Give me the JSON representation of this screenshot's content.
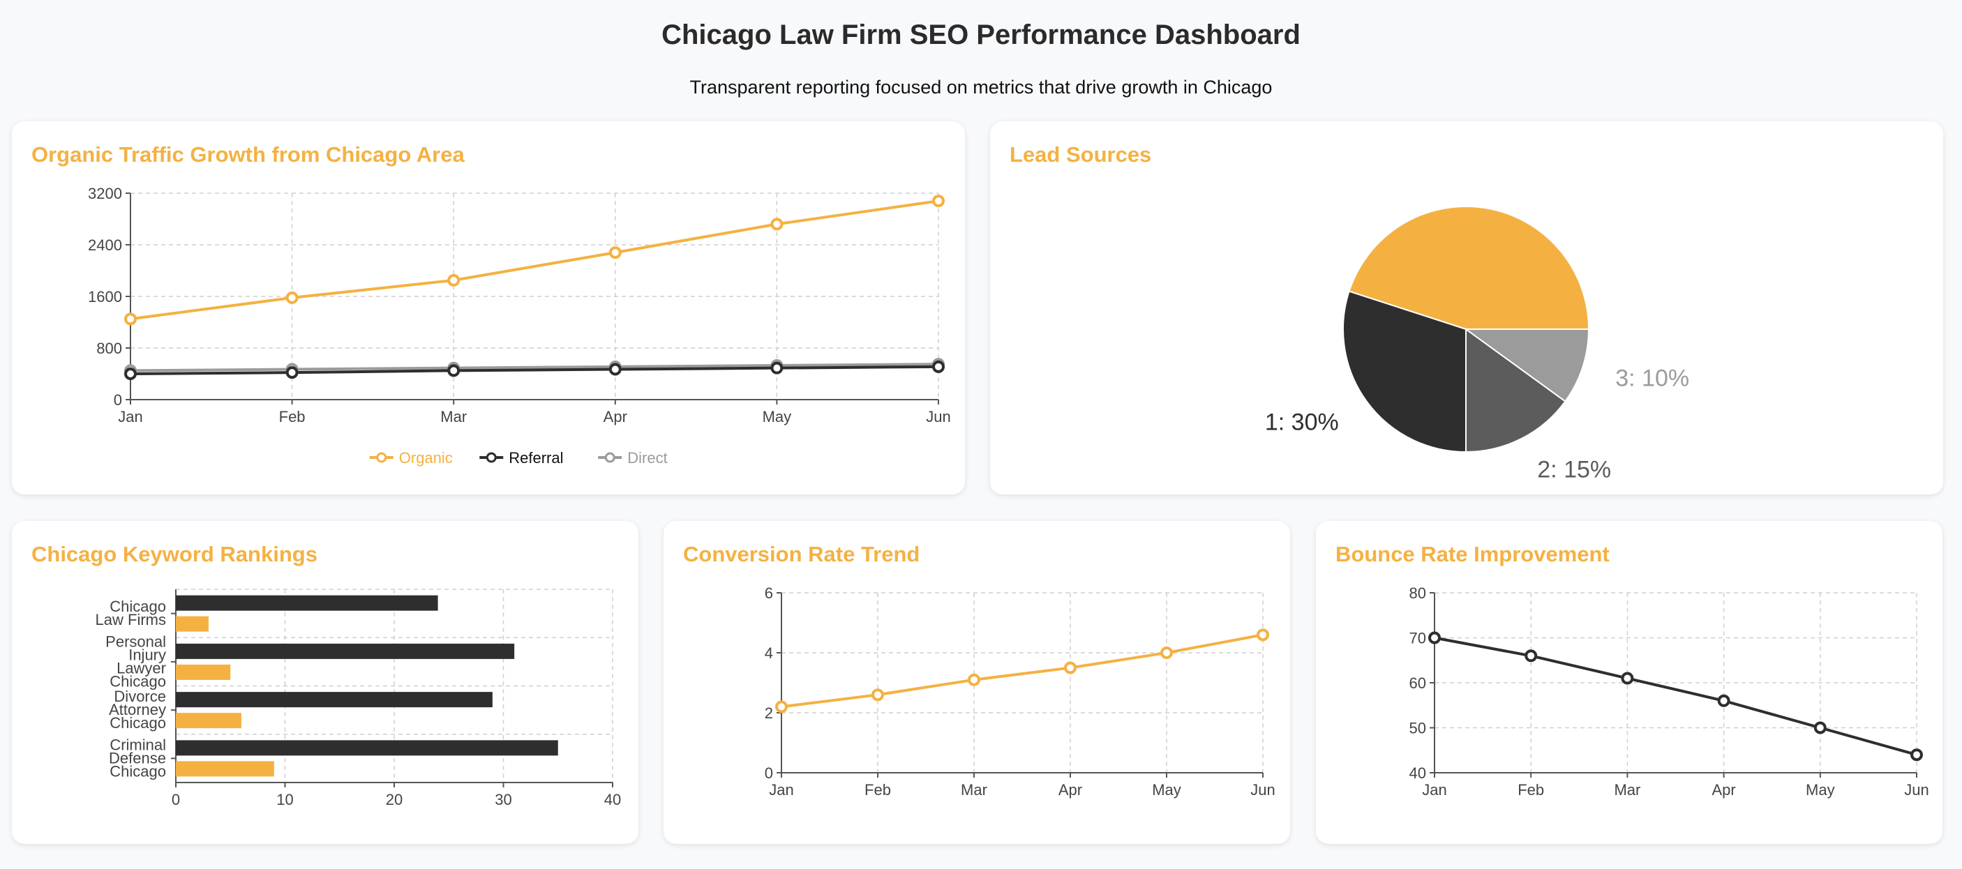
{
  "page": {
    "title": "Chicago Law Firm SEO Performance Dashboard",
    "subtitle": "Transparent reporting focused on metrics that drive growth in Chicago"
  },
  "colors": {
    "accent": "#f4b142",
    "dark": "#2e2e2e",
    "mid": "#5c5c5c",
    "light": "#9b9b9b"
  },
  "chart_data": [
    {
      "id": "traffic",
      "type": "line",
      "title": "Organic Traffic Growth from Chicago Area",
      "categories": [
        "Jan",
        "Feb",
        "Mar",
        "Apr",
        "May",
        "Jun"
      ],
      "series": [
        {
          "name": "Organic",
          "color": "#f4b142",
          "values": [
            1250,
            1580,
            1850,
            2280,
            2720,
            3080
          ]
        },
        {
          "name": "Referral",
          "color": "#2e2e2e",
          "values": [
            400,
            420,
            450,
            470,
            490,
            510
          ]
        },
        {
          "name": "Direct",
          "color": "#9b9b9b",
          "values": [
            450,
            470,
            490,
            510,
            530,
            550
          ]
        }
      ],
      "ylim": [
        0,
        3200
      ],
      "yticks": [
        0,
        800,
        1600,
        2400,
        3200
      ],
      "grid": true,
      "legend": "bottom"
    },
    {
      "id": "leads",
      "type": "pie",
      "title": "Lead Sources",
      "slices": [
        {
          "label": "0: 45%",
          "value": 45,
          "color": "#f4b142",
          "showLabel": false
        },
        {
          "label": "1: 30%",
          "value": 30,
          "color": "#2e2e2e",
          "showLabel": true
        },
        {
          "label": "2: 15%",
          "value": 15,
          "color": "#5c5c5c",
          "showLabel": true
        },
        {
          "label": "3: 10%",
          "value": 10,
          "color": "#9b9b9b",
          "showLabel": true
        }
      ]
    },
    {
      "id": "keywords",
      "type": "bar",
      "orientation": "horizontal",
      "title": "Chicago Keyword Rankings",
      "categories": [
        [
          "Chicago",
          "Law Firms"
        ],
        [
          "Personal",
          "Injury",
          "Lawyer",
          "Chicago"
        ],
        [
          "Divorce",
          "Attorney",
          "Chicago"
        ],
        [
          "Criminal",
          "Defense",
          "Chicago"
        ]
      ],
      "series": [
        {
          "color": "#2e2e2e",
          "values": [
            24,
            31,
            29,
            35
          ]
        },
        {
          "color": "#f4b142",
          "values": [
            3,
            5,
            6,
            9
          ]
        }
      ],
      "xlim": [
        0,
        40
      ],
      "xticks": [
        0,
        10,
        20,
        30,
        40
      ],
      "grid": true
    },
    {
      "id": "conversion",
      "type": "line",
      "title": "Conversion Rate Trend",
      "categories": [
        "Jan",
        "Feb",
        "Mar",
        "Apr",
        "May",
        "Jun"
      ],
      "series": [
        {
          "color": "#f4b142",
          "values": [
            2.2,
            2.6,
            3.1,
            3.5,
            4.0,
            4.6
          ]
        }
      ],
      "ylim": [
        0,
        6
      ],
      "yticks": [
        0,
        2,
        4,
        6
      ],
      "grid": true
    },
    {
      "id": "bounce",
      "type": "line",
      "title": "Bounce Rate Improvement",
      "categories": [
        "Jan",
        "Feb",
        "Mar",
        "Apr",
        "May",
        "Jun"
      ],
      "series": [
        {
          "color": "#2e2e2e",
          "values": [
            70,
            66,
            61,
            56,
            50,
            44
          ]
        }
      ],
      "ylim": [
        40,
        80
      ],
      "yticks": [
        40,
        50,
        60,
        70,
        80
      ],
      "grid": true
    }
  ]
}
